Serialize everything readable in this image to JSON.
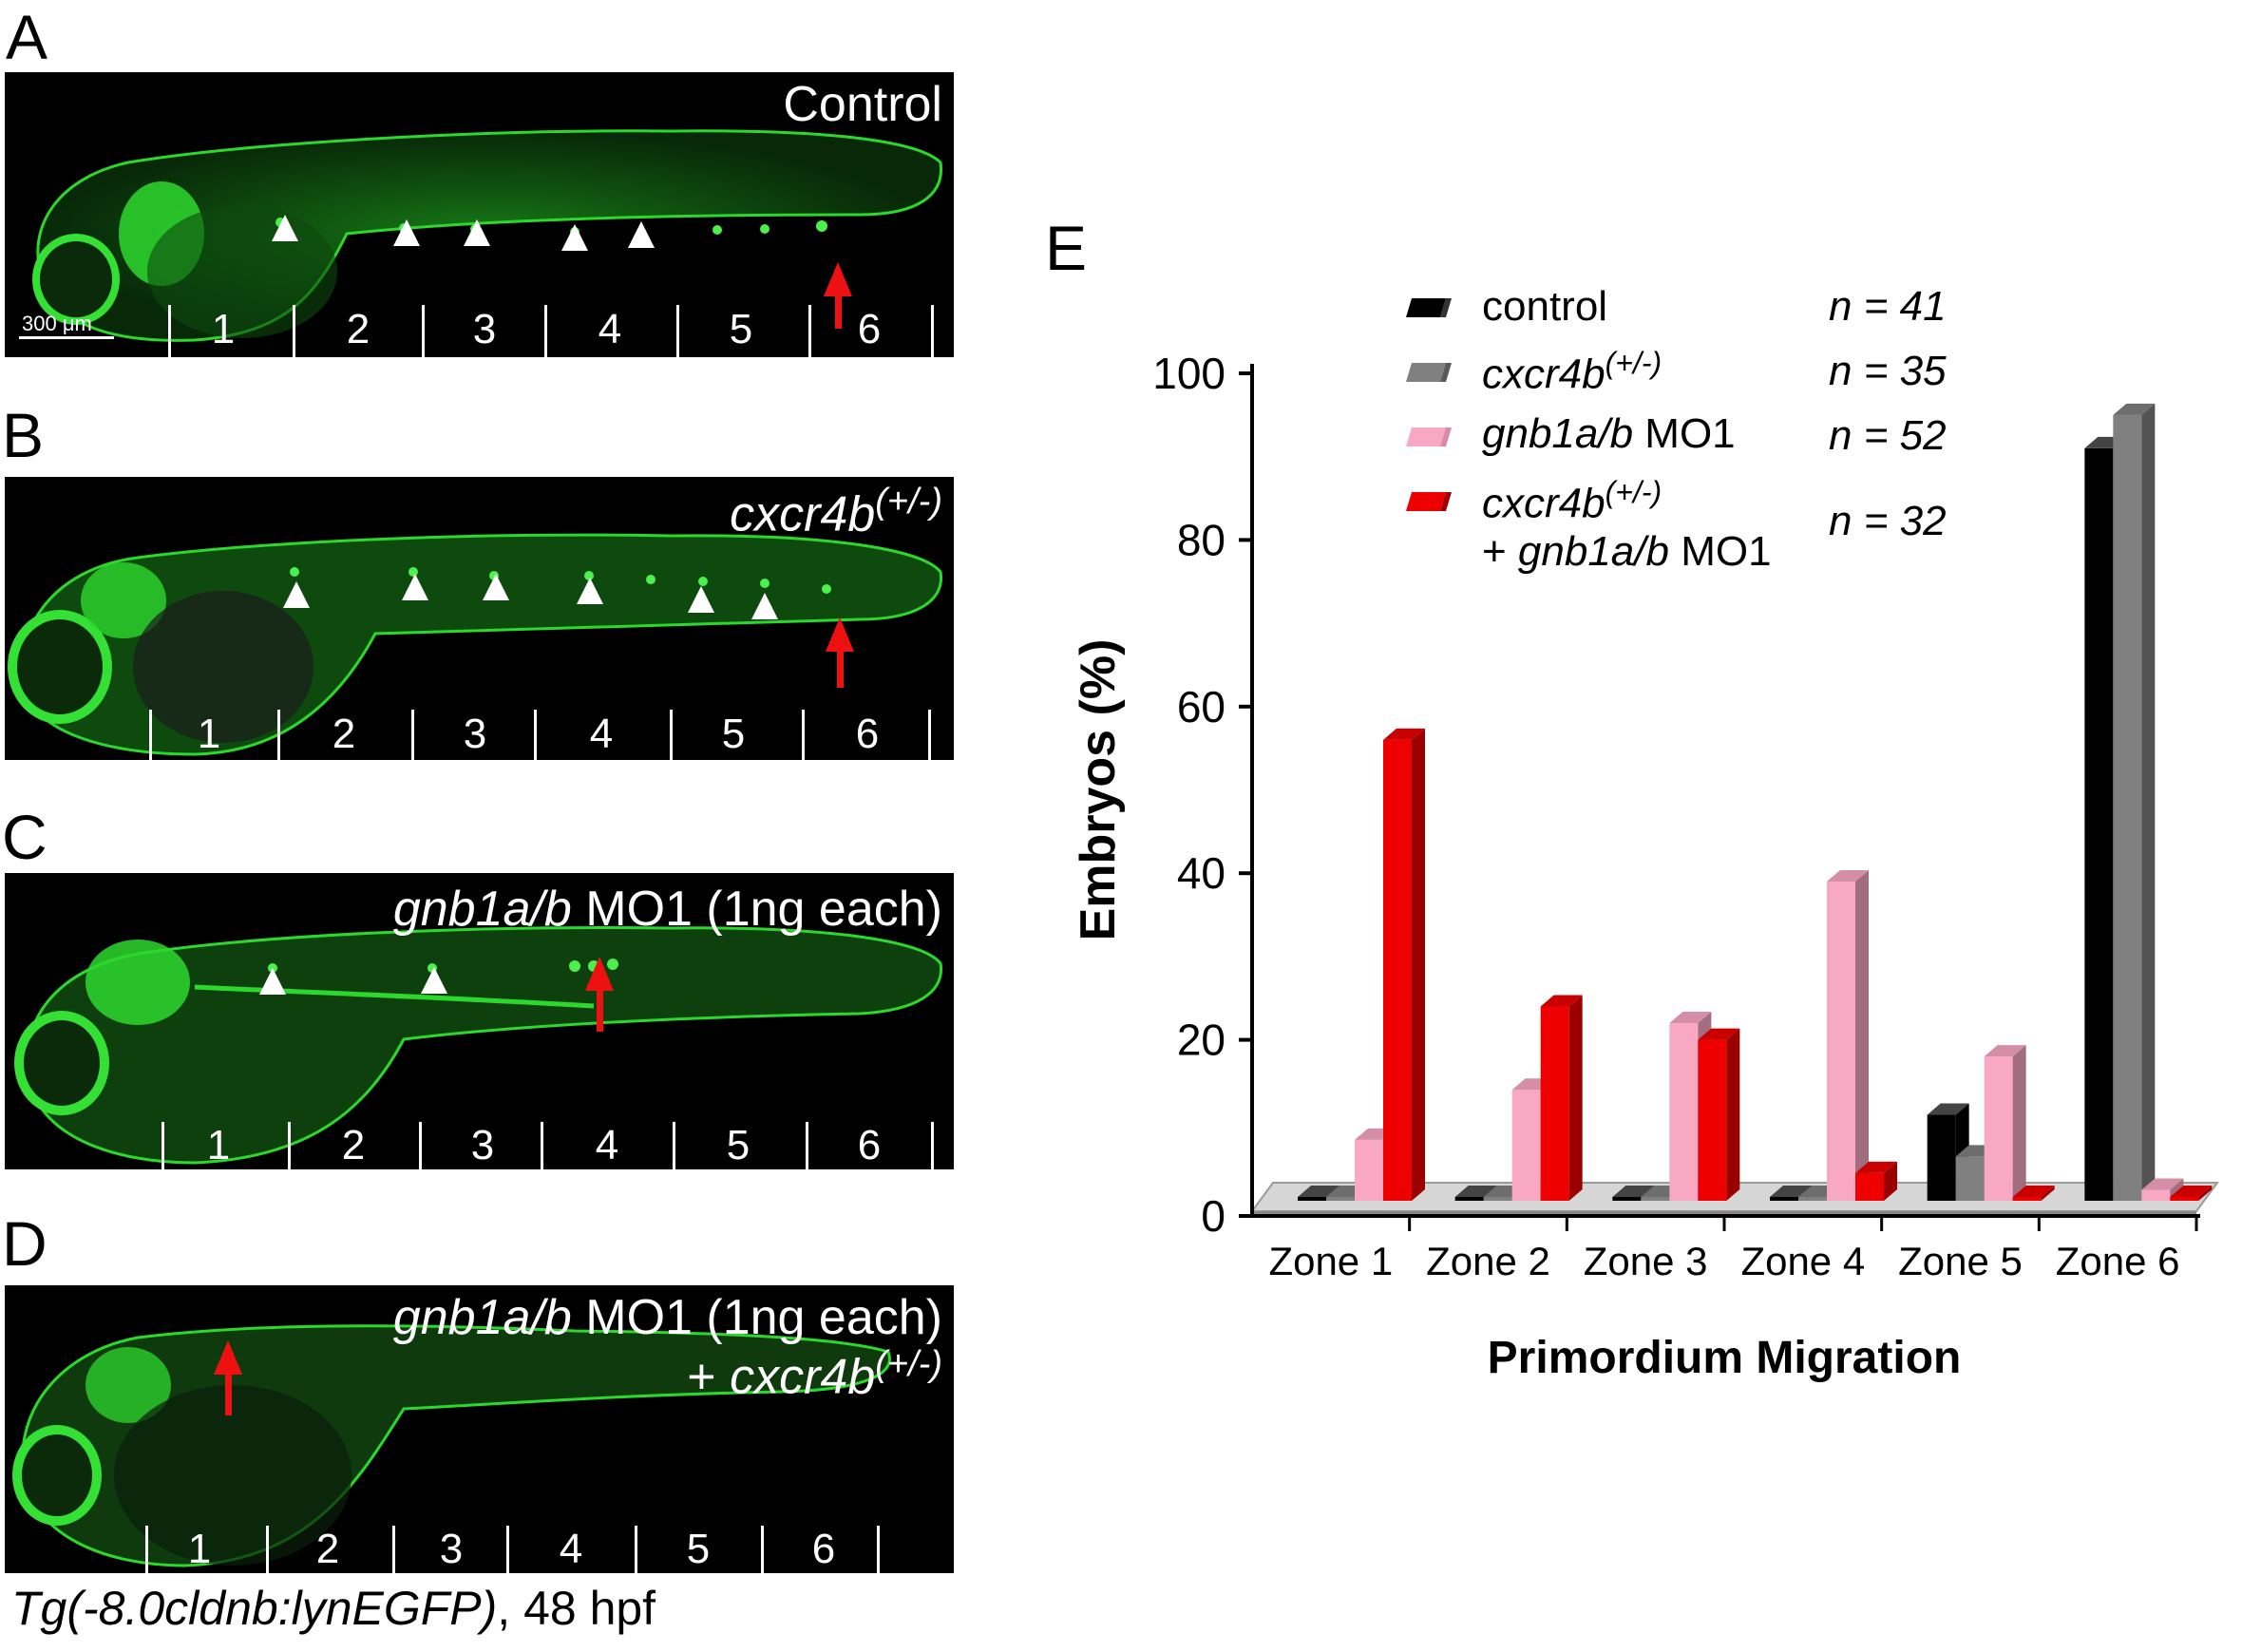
{
  "figure": {
    "panel_letters": [
      "A",
      "B",
      "C",
      "D",
      "E"
    ],
    "scale_bar_label": "300 μm",
    "footnote": {
      "gene": "Tg(-8.0cldnb:lynEGFP)",
      "rest": ", 48 hpf"
    }
  },
  "panels": [
    {
      "letter": "A",
      "condition": "Control",
      "zones": [
        "1",
        "2",
        "3",
        "4",
        "5",
        "6"
      ]
    },
    {
      "letter": "B",
      "condition_italic": "cxcr4b",
      "condition_sup": "(+/-)",
      "zones": [
        "1",
        "2",
        "3",
        "4",
        "5",
        "6"
      ]
    },
    {
      "letter": "C",
      "condition_italic": "gnb1a/b",
      "condition_rest": " MO1 (1ng each)",
      "zones": [
        "1",
        "2",
        "3",
        "4",
        "5",
        "6"
      ]
    },
    {
      "letter": "D",
      "condition_italic": "gnb1a/b",
      "condition_rest": " MO1 (1ng each)",
      "condition2_prefix": "+ ",
      "condition2_italic": "cxcr4b",
      "condition2_sup": "(+/-)",
      "zones": [
        "1",
        "2",
        "3",
        "4",
        "5",
        "6"
      ]
    }
  ],
  "colors": {
    "control": "#000000",
    "cxcr4b": "#808080",
    "gnb1ab": "#f9a8c4",
    "combo": "#ee0000",
    "fluorescence": "#22d022",
    "arrow": "#ee1111",
    "arrowhead": "#ffffff"
  },
  "chart_data": {
    "type": "bar",
    "panel": "E",
    "title": "",
    "xlabel": "Primordium Migration",
    "ylabel": "Embryos (%)",
    "ylim": [
      0,
      100
    ],
    "yticks": [
      "0",
      "20",
      "40",
      "60",
      "80",
      "100"
    ],
    "categories": [
      "Zone 1",
      "Zone 2",
      "Zone 3",
      "Zone 4",
      "Zone 5",
      "Zone 6"
    ],
    "series": [
      {
        "name": "control",
        "n": "n = 41",
        "color": "#000000",
        "values": [
          0,
          0,
          0,
          0,
          11,
          91
        ]
      },
      {
        "name": "cxcr4b(+/-)",
        "name_italic": "cxcr4b",
        "name_sup": "(+/-)",
        "n": "n = 35",
        "color": "#808080",
        "values": [
          0,
          0,
          0,
          0,
          6,
          95
        ]
      },
      {
        "name": "gnb1a/b MO1",
        "name_italic": "gnb1a/b",
        "name_rest": " MO1",
        "n": "n = 52",
        "color": "#f9a8c4",
        "values": [
          8,
          14,
          22,
          39,
          18,
          2
        ]
      },
      {
        "name": "cxcr4b(+/-) + gnb1a/b MO1",
        "name_italic": "cxcr4b",
        "name_sup": "(+/-)",
        "name_line2_prefix": "+ ",
        "name_line2_italic": "gnb1a/b",
        "name_line2_rest": " MO1",
        "n": "n = 32",
        "color": "#ee0000",
        "values": [
          56,
          24,
          20,
          4,
          0,
          0
        ]
      }
    ],
    "grid": false,
    "legend_position": "top-center"
  }
}
